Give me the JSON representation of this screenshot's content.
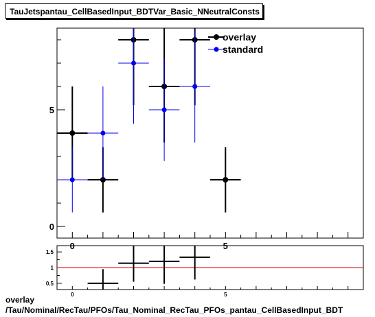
{
  "title": "TauJetspantau_CellBasedInput_BDTVar_Basic_NNeutralConsts",
  "caption": {
    "line1": "overlay",
    "line2": "/Tau/Nominal/RecTau/PFOs/Tau_Nominal_RecTau_PFOs_pantau_CellBasedInput_BDT"
  },
  "colors": {
    "overlay": "#000000",
    "standard": "#0000ee",
    "ratio_line": "#cc0000"
  },
  "chart_data": [
    {
      "type": "scatter",
      "panel": "main",
      "xlim": [
        -0.5,
        9.5
      ],
      "ylim": [
        -0.5,
        8.5
      ],
      "x_ticks": [
        0,
        5
      ],
      "y_ticks": [
        0,
        5
      ],
      "legend_position": "top-right",
      "series": [
        {
          "name": "overlay",
          "points": [
            {
              "x": 0,
              "y": 4,
              "xerr": 0.5,
              "ylo": 2,
              "yhi": 6
            },
            {
              "x": 1,
              "y": 2,
              "xerr": 0.5,
              "ylo": 0.6,
              "yhi": 3.4
            },
            {
              "x": 2,
              "y": 8,
              "xerr": 0.5,
              "ylo": 5.2,
              "yhi": 10.8
            },
            {
              "x": 3,
              "y": 6,
              "xerr": 0.5,
              "ylo": 3.6,
              "yhi": 8.5
            },
            {
              "x": 4,
              "y": 8,
              "xerr": 0.5,
              "ylo": 5.2,
              "yhi": 10.8
            },
            {
              "x": 5,
              "y": 2,
              "xerr": 0.5,
              "ylo": 0.6,
              "yhi": 3.4
            }
          ]
        },
        {
          "name": "standard",
          "points": [
            {
              "x": 0,
              "y": 2,
              "xerr": 0.5,
              "ylo": 0.6,
              "yhi": 3.4
            },
            {
              "x": 1,
              "y": 4,
              "xerr": 0.5,
              "ylo": 2,
              "yhi": 6
            },
            {
              "x": 2,
              "y": 7,
              "xerr": 0.5,
              "ylo": 4.4,
              "yhi": 9.6
            },
            {
              "x": 3,
              "y": 5,
              "xerr": 0.5,
              "ylo": 2.8,
              "yhi": 7.2
            },
            {
              "x": 4,
              "y": 6,
              "xerr": 0.5,
              "ylo": 3.6,
              "yhi": 8.4
            }
          ]
        }
      ]
    },
    {
      "type": "scatter",
      "panel": "ratio",
      "xlim": [
        -0.5,
        9.5
      ],
      "ylim": [
        0.3,
        1.7
      ],
      "x_ticks": [
        0,
        5
      ],
      "y_ticks": [
        0.5,
        1,
        1.5
      ],
      "y_tick_labels": [
        "0.5",
        "1",
        "1.5"
      ],
      "reference_line": 1,
      "series": [
        {
          "name": "ratio",
          "points": [
            {
              "x": 1,
              "y": 0.5,
              "xerr": 0.5,
              "ylo": 0.15,
              "yhi": 0.95
            },
            {
              "x": 2,
              "y": 1.14,
              "xerr": 0.5,
              "ylo": 0.55,
              "yhi": 1.75
            },
            {
              "x": 3,
              "y": 1.2,
              "xerr": 0.5,
              "ylo": 0.48,
              "yhi": 1.9
            },
            {
              "x": 4,
              "y": 1.33,
              "xerr": 0.5,
              "ylo": 0.62,
              "yhi": 2.0
            }
          ]
        }
      ]
    }
  ]
}
